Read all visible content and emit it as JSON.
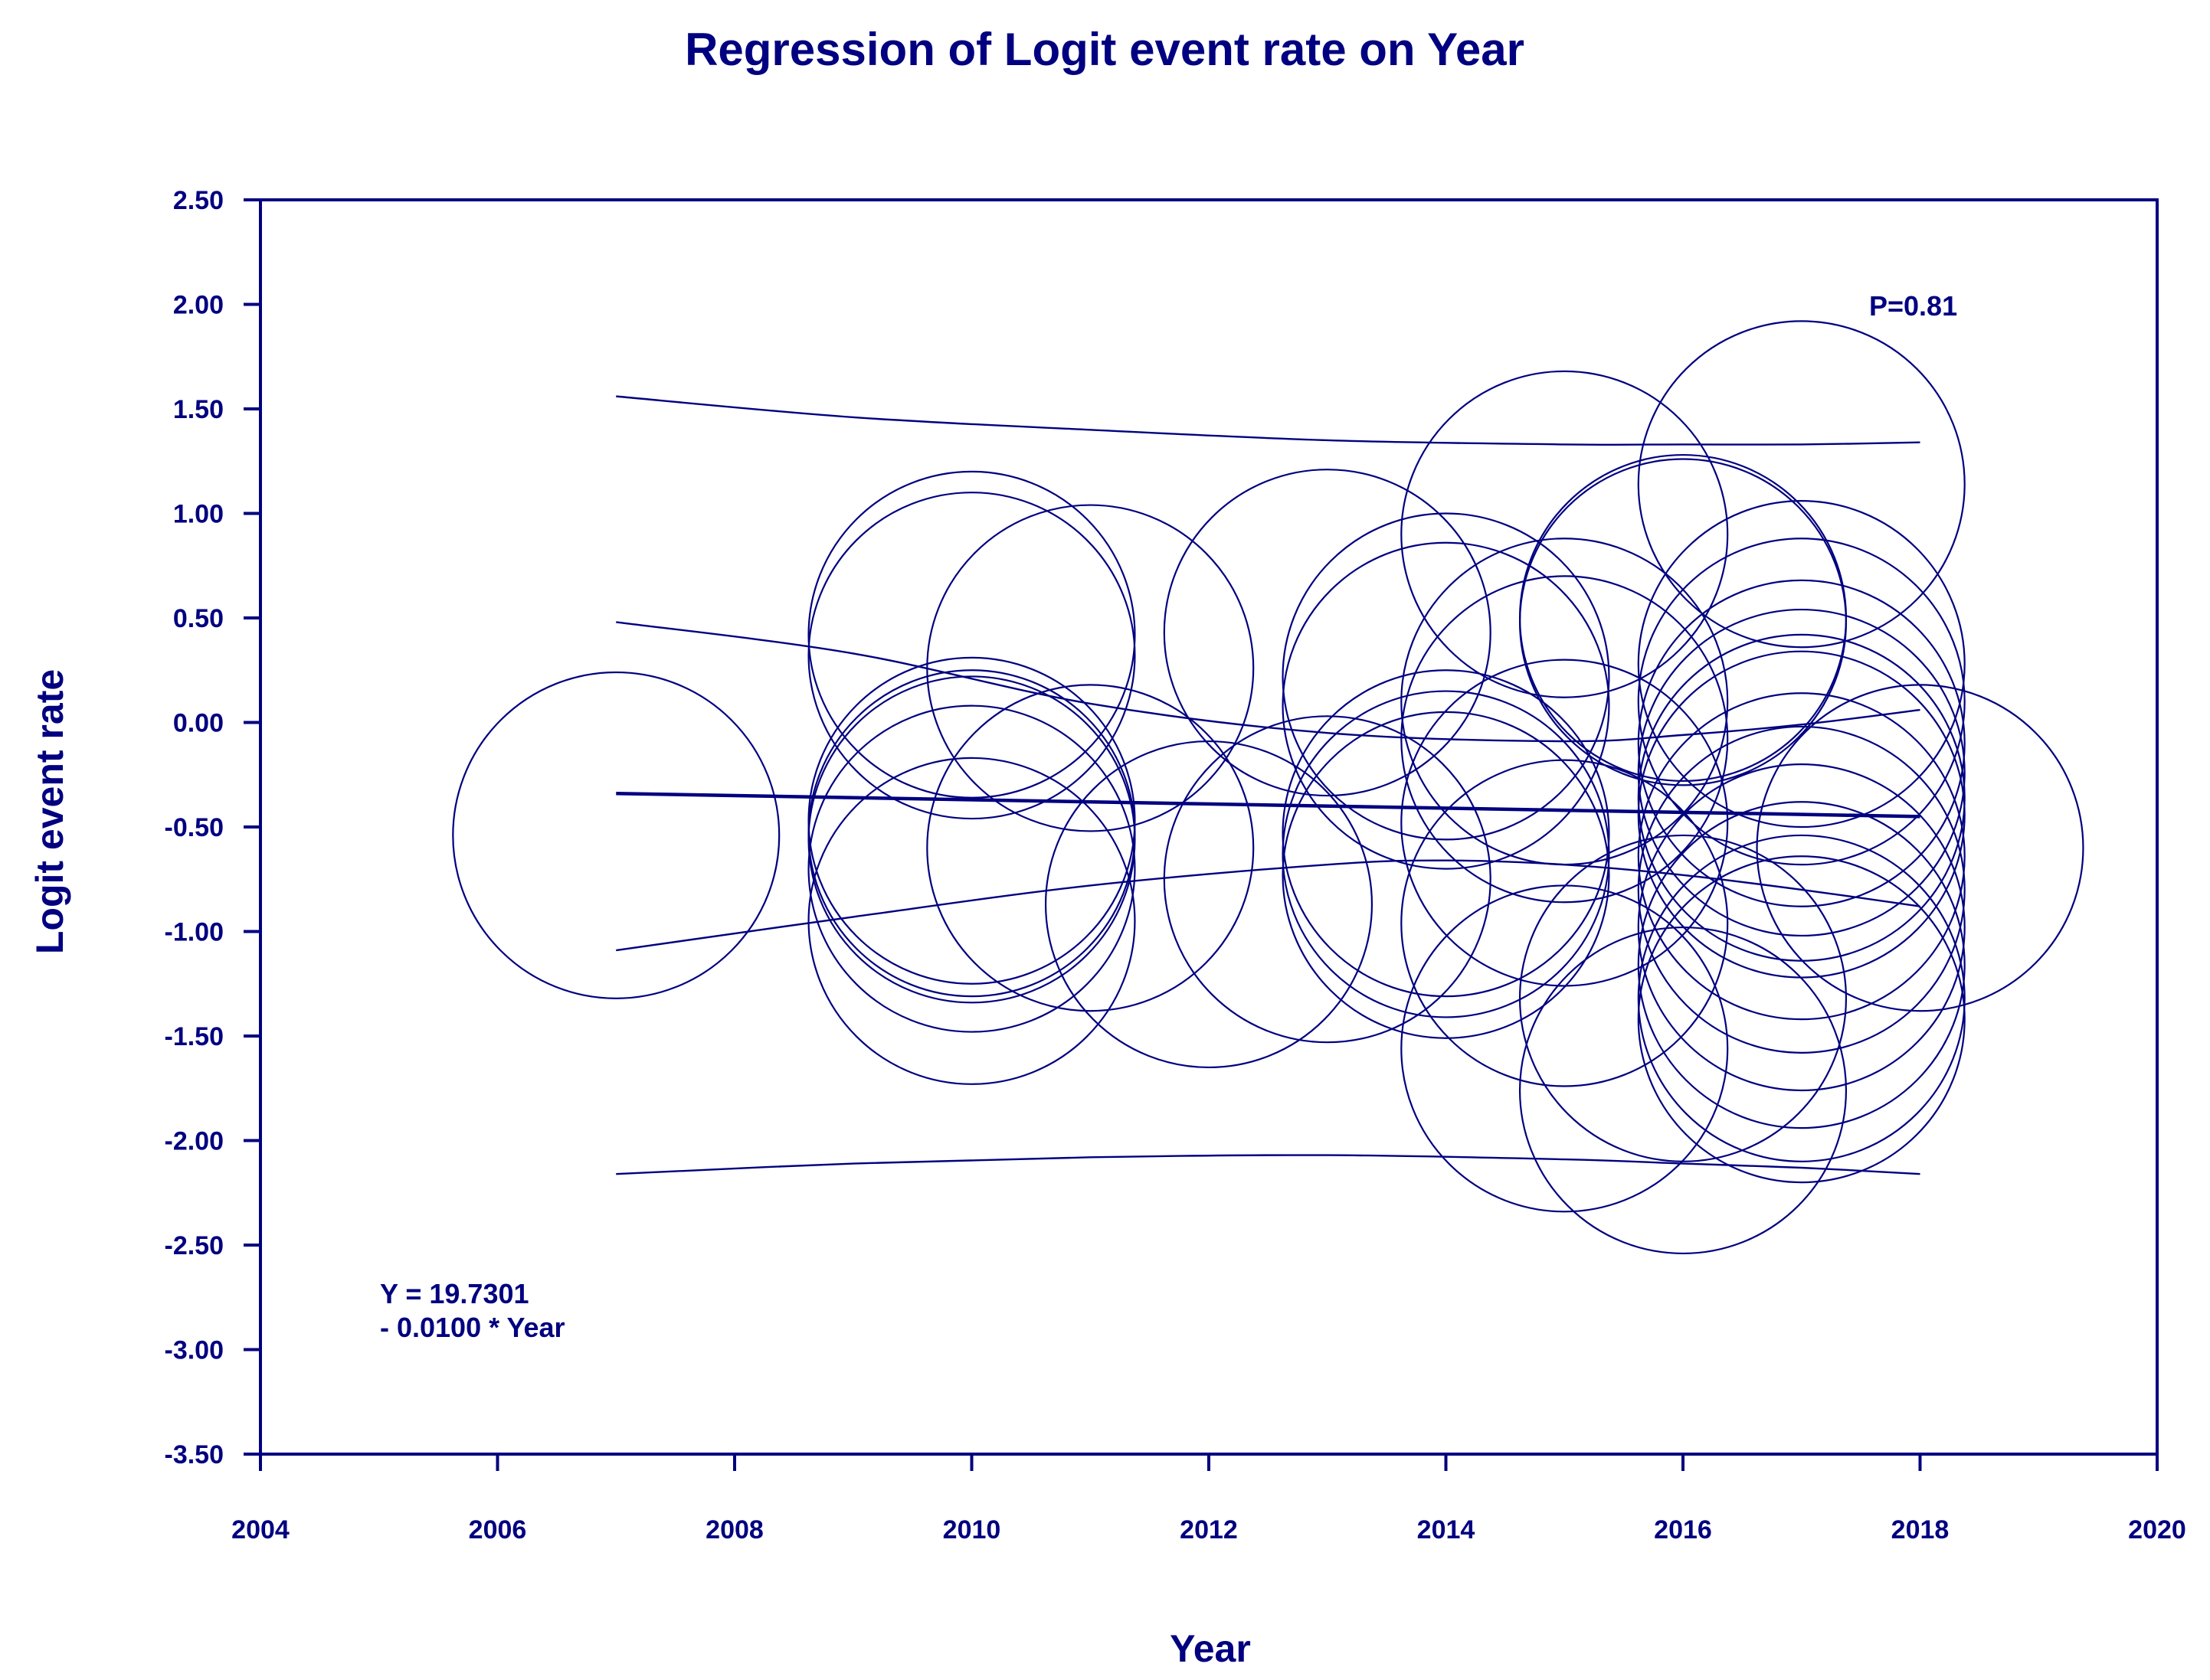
{
  "chart_data": {
    "type": "scatter",
    "title": "Regression of Logit event rate on Year",
    "xlabel": "Year",
    "ylabel": "Logit event rate",
    "xlim": [
      2004,
      2020
    ],
    "ylim": [
      -3.5,
      2.5
    ],
    "xticks": [
      2004,
      2006,
      2008,
      2010,
      2012,
      2014,
      2016,
      2018,
      2020
    ],
    "xtick_labels": [
      "2004",
      "2006",
      "2008",
      "2010",
      "2012",
      "2014",
      "2016",
      "2018",
      "2020"
    ],
    "yticks": [
      2.5,
      2.0,
      1.5,
      1.0,
      0.5,
      0.0,
      -0.5,
      -1.0,
      -1.5,
      -2.0,
      -2.5,
      -3.0,
      -3.5
    ],
    "ytick_labels": [
      "2.50",
      "2.00",
      "1.50",
      "1.00",
      "0.50",
      "0.00",
      "-0.50",
      "-1.00",
      "-1.50",
      "-2.00",
      "-2.50",
      "-3.00",
      "-3.50"
    ],
    "bubble_radius_data_units": 0.78,
    "points": [
      {
        "x": 2007,
        "y": -0.54
      },
      {
        "x": 2010,
        "y": 0.42
      },
      {
        "x": 2010,
        "y": 0.32
      },
      {
        "x": 2010,
        "y": -0.47
      },
      {
        "x": 2010,
        "y": -0.53
      },
      {
        "x": 2010,
        "y": -0.56
      },
      {
        "x": 2010,
        "y": -0.7
      },
      {
        "x": 2010,
        "y": -0.95
      },
      {
        "x": 2011,
        "y": 0.26
      },
      {
        "x": 2011,
        "y": -0.6
      },
      {
        "x": 2012,
        "y": -0.87
      },
      {
        "x": 2013,
        "y": 0.43
      },
      {
        "x": 2013,
        "y": -0.75
      },
      {
        "x": 2014,
        "y": 0.22
      },
      {
        "x": 2014,
        "y": 0.08
      },
      {
        "x": 2014,
        "y": -0.53
      },
      {
        "x": 2014,
        "y": -0.63
      },
      {
        "x": 2014,
        "y": -0.73
      },
      {
        "x": 2015,
        "y": 0.9
      },
      {
        "x": 2015,
        "y": 0.1
      },
      {
        "x": 2015,
        "y": -0.08
      },
      {
        "x": 2015,
        "y": -0.48
      },
      {
        "x": 2015,
        "y": -0.96
      },
      {
        "x": 2015,
        "y": -1.56
      },
      {
        "x": 2016,
        "y": 0.5
      },
      {
        "x": 2016,
        "y": 0.48
      },
      {
        "x": 2016,
        "y": -1.32
      },
      {
        "x": 2016,
        "y": -1.76
      },
      {
        "x": 2017,
        "y": 1.14
      },
      {
        "x": 2017,
        "y": 0.28
      },
      {
        "x": 2017,
        "y": 0.1
      },
      {
        "x": 2017,
        "y": -0.1
      },
      {
        "x": 2017,
        "y": -0.24
      },
      {
        "x": 2017,
        "y": -0.36
      },
      {
        "x": 2017,
        "y": -0.44
      },
      {
        "x": 2017,
        "y": -0.64
      },
      {
        "x": 2017,
        "y": -0.8
      },
      {
        "x": 2017,
        "y": -0.98
      },
      {
        "x": 2017,
        "y": -1.16
      },
      {
        "x": 2017,
        "y": -1.32
      },
      {
        "x": 2017,
        "y": -1.42
      },
      {
        "x": 2018,
        "y": -0.6
      }
    ],
    "regression": {
      "intercept": 19.7301,
      "slope": -0.01,
      "x_range": [
        2007,
        2018
      ]
    },
    "confidence_interval": {
      "upper": [
        [
          2007,
          0.48
        ],
        [
          2009,
          0.33
        ],
        [
          2011,
          0.09
        ],
        [
          2013,
          -0.05
        ],
        [
          2015,
          -0.09
        ],
        [
          2016,
          -0.06
        ],
        [
          2017,
          -0.01
        ],
        [
          2018,
          0.06
        ]
      ],
      "lower": [
        [
          2007,
          -1.09
        ],
        [
          2009,
          -0.93
        ],
        [
          2011,
          -0.78
        ],
        [
          2013,
          -0.68
        ],
        [
          2014,
          -0.66
        ],
        [
          2015,
          -0.68
        ],
        [
          2016,
          -0.73
        ],
        [
          2017,
          -0.8
        ],
        [
          2018,
          -0.88
        ]
      ]
    },
    "prediction_interval": {
      "upper": [
        [
          2007,
          1.56
        ],
        [
          2009,
          1.46
        ],
        [
          2011,
          1.4
        ],
        [
          2013,
          1.35
        ],
        [
          2015,
          1.33
        ],
        [
          2016,
          1.33
        ],
        [
          2017,
          1.33
        ],
        [
          2018,
          1.34
        ]
      ],
      "lower": [
        [
          2007,
          -2.16
        ],
        [
          2009,
          -2.11
        ],
        [
          2011,
          -2.08
        ],
        [
          2013,
          -2.07
        ],
        [
          2015,
          -2.09
        ],
        [
          2016,
          -2.11
        ],
        [
          2017,
          -2.13
        ],
        [
          2018,
          -2.16
        ]
      ]
    },
    "annotations": {
      "p_value": "P=0.81",
      "equation_line1": "Y = 19.7301",
      "equation_line2": "- 0.0100 * Year"
    }
  }
}
